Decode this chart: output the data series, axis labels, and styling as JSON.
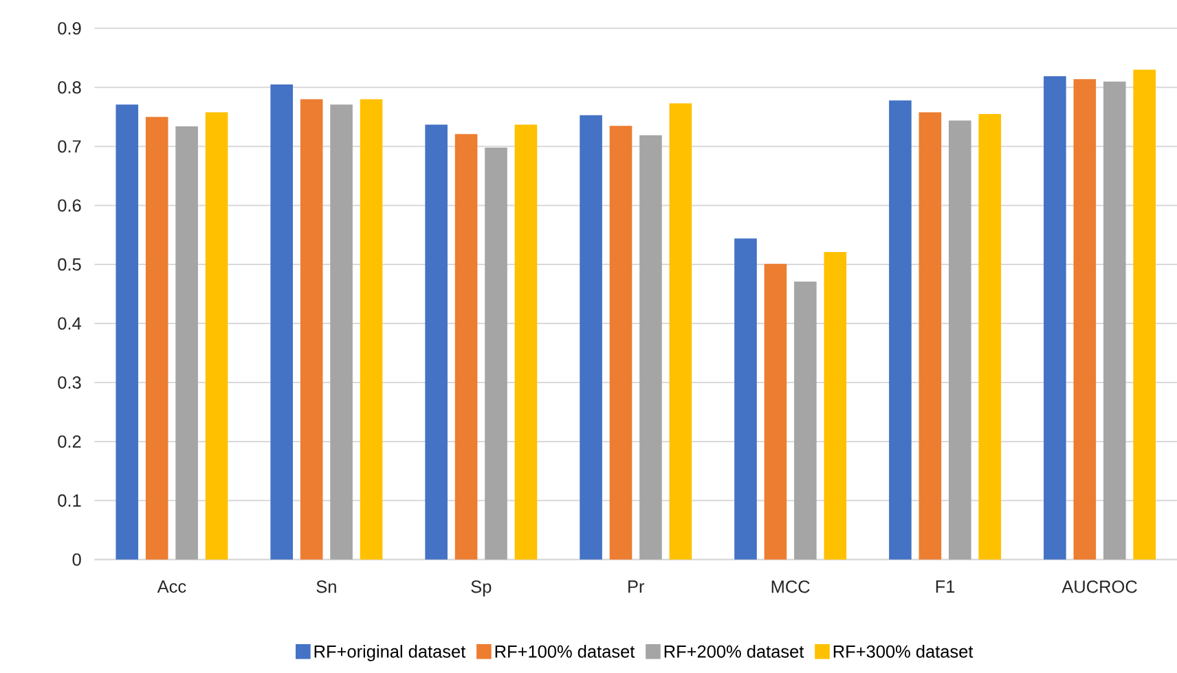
{
  "chart_data": {
    "type": "bar",
    "categories": [
      "Acc",
      "Sn",
      "Sp",
      "Pr",
      "MCC",
      "F1",
      "AUCROC"
    ],
    "series": [
      {
        "name": "RF+original dataset",
        "color": "#4472c4",
        "values": [
          0.771,
          0.805,
          0.737,
          0.753,
          0.544,
          0.778,
          0.819
        ]
      },
      {
        "name": "RF+100% dataset",
        "color": "#ed7d31",
        "values": [
          0.75,
          0.78,
          0.721,
          0.735,
          0.501,
          0.758,
          0.814
        ]
      },
      {
        "name": "RF+200% dataset",
        "color": "#a5a5a5",
        "values": [
          0.734,
          0.771,
          0.698,
          0.719,
          0.471,
          0.744,
          0.81
        ]
      },
      {
        "name": "RF+300% dataset",
        "color": "#ffc000",
        "values": [
          0.758,
          0.78,
          0.737,
          0.773,
          0.521,
          0.755,
          0.83
        ]
      }
    ],
    "ylim": [
      0,
      0.9
    ],
    "yticks": [
      0,
      0.1,
      0.2,
      0.3,
      0.4,
      0.5,
      0.6,
      0.7,
      0.8,
      0.9
    ],
    "grid": "y",
    "legend": "bottom"
  }
}
